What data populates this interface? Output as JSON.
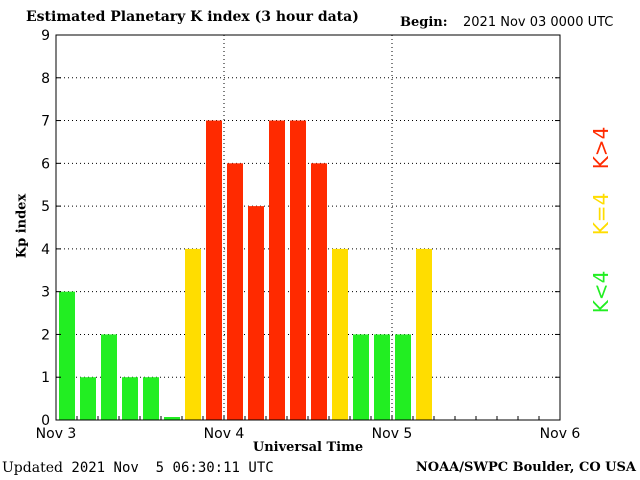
{
  "header": {
    "title": "Estimated Planetary K index (3 hour data)",
    "begin_label": "Begin:",
    "begin_value": "2021 Nov 03 0000 UTC"
  },
  "footer": {
    "updated_label": "Updated",
    "updated_value": "2021 Nov  5 06:30:11 UTC",
    "credit": "NOAA/SWPC Boulder, CO USA"
  },
  "legend": {
    "high": "K>4",
    "equal": "K=4",
    "low": "K<4"
  },
  "colors": {
    "low": "#22ee22",
    "equal": "#ffdd00",
    "high": "#ff2a00",
    "grid": "#000000"
  },
  "chart_data": {
    "type": "bar",
    "title": "Estimated Planetary K index (3 hour data)",
    "xlabel": "Universal Time",
    "ylabel": "Kp index",
    "ylim": [
      0,
      9
    ],
    "yticks": [
      "0",
      "1",
      "2",
      "3",
      "4",
      "5",
      "6",
      "7",
      "8",
      "9"
    ],
    "xticks": [
      "Nov 3",
      "Nov 4",
      "Nov 5",
      "Nov 6"
    ],
    "slots_per_day": 8,
    "grid": "dotted",
    "values": [
      3,
      1,
      2,
      1,
      1,
      0,
      4,
      7,
      6,
      5,
      7,
      7,
      6,
      4,
      2,
      2,
      2,
      4
    ]
  }
}
